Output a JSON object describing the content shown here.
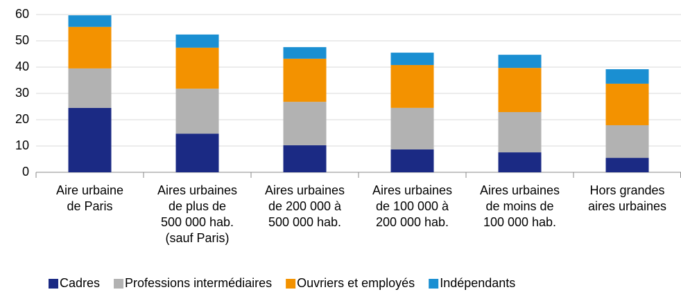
{
  "chart_data": {
    "type": "stacked_bar",
    "categories": [
      [
        "Aire urbaine",
        "de Paris"
      ],
      [
        "Aires urbaines",
        "de plus de",
        "500 000 hab.",
        "(sauf Paris)"
      ],
      [
        "Aires urbaines",
        "de 200 000 à",
        "500 000 hab."
      ],
      [
        "Aires urbaines",
        "de 100 000 à",
        "200 000 hab."
      ],
      [
        "Aires urbaines",
        "de moins de",
        "100 000 hab."
      ],
      [
        "Hors grandes",
        "aires urbaines"
      ]
    ],
    "series": [
      {
        "name": "Cadres",
        "color": "#1b2a84",
        "values": [
          24.5,
          14.7,
          10.3,
          8.7,
          7.6,
          5.5
        ]
      },
      {
        "name": "Professions intermédiaires",
        "color": "#b2b2b2",
        "values": [
          15,
          17.1,
          16.5,
          15.8,
          15.3,
          12.4
        ]
      },
      {
        "name": "Ouvriers et employés",
        "color": "#f39200",
        "values": [
          15.8,
          15.6,
          16.4,
          16.3,
          16.8,
          15.8
        ]
      },
      {
        "name": "Indépendants",
        "color": "#1a8fd2",
        "values": [
          4.4,
          5,
          4.4,
          4.7,
          5,
          5.5
        ]
      }
    ],
    "ylim": [
      0,
      60
    ],
    "yticks": [
      0,
      10,
      20,
      30,
      40,
      50,
      60
    ],
    "grid": true,
    "legend": "bottom"
  }
}
